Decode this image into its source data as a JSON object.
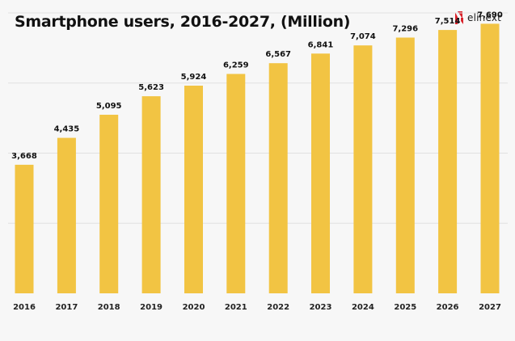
{
  "header": {
    "title": "Smartphone users, 2016-2027, (Million)",
    "logo_text": "elinext",
    "logo_icon": "elinext-logo-icon"
  },
  "colors": {
    "bar": "#f2c443",
    "grid": "#e0e0e0",
    "background": "#f7f7f7",
    "brand": "#d9222a"
  },
  "chart_data": {
    "type": "bar",
    "title": "Smartphone users, 2016-2027, (Million)",
    "xlabel": "",
    "ylabel": "",
    "categories": [
      "2016",
      "2017",
      "2018",
      "2019",
      "2020",
      "2021",
      "2022",
      "2023",
      "2024",
      "2025",
      "2026",
      "2027"
    ],
    "values": [
      3668,
      4435,
      5095,
      5623,
      5924,
      6259,
      6567,
      6841,
      7074,
      7296,
      7514,
      7690
    ],
    "value_labels": [
      "3,668",
      "4,435",
      "5,095",
      "5,623",
      "5,924",
      "6,259",
      "6,567",
      "6,841",
      "7,074",
      "7,296",
      "7,514",
      "7,690"
    ],
    "ylim": [
      0,
      8000
    ],
    "grid": true,
    "legend": "none"
  }
}
